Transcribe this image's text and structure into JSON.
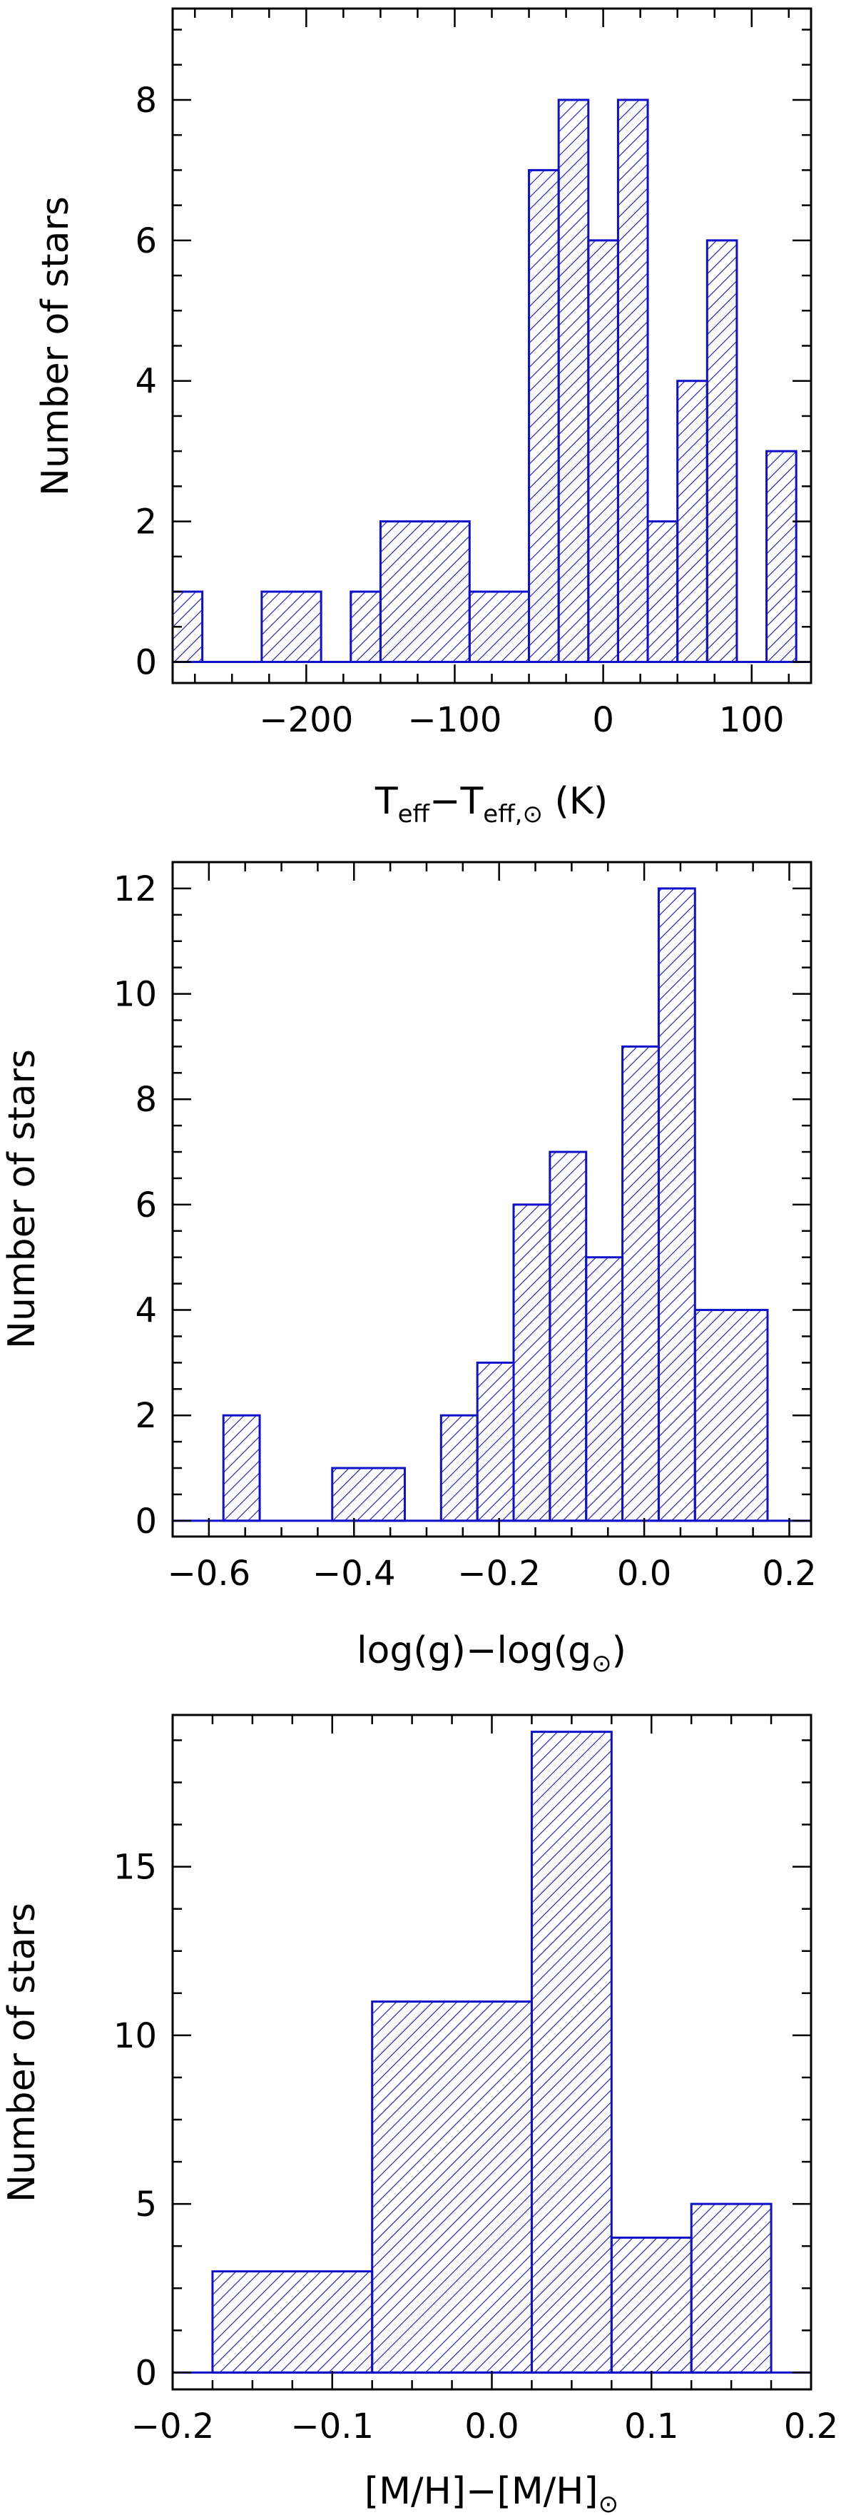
{
  "colors": {
    "bars": "#1010c8",
    "axes": "#000000",
    "background": "#ffffff"
  },
  "chart_data": [
    {
      "type": "bar",
      "title": "",
      "ylabel": "Number of stars",
      "xlabel": "T_eff − T_eff,⊙ (K)",
      "xlabel_parts": {
        "t1": "T",
        "s1": "eff",
        "minus": "−",
        "t2": "T",
        "s2": "eff,⊙",
        "unit": " (K)"
      },
      "xlim": [
        -290,
        140
      ],
      "ylim": [
        -0.3,
        9.3
      ],
      "xticks": [
        -200,
        -100,
        0,
        100
      ],
      "xtick_labels": [
        "−200",
        "−100",
        "0",
        "100"
      ],
      "yticks": [
        0,
        2,
        4,
        6,
        8
      ],
      "ytick_labels": [
        "0",
        "2",
        "4",
        "6",
        "8"
      ],
      "bin_width": 20,
      "bins": [
        {
          "x0": -290,
          "x1": -270,
          "count": 1
        },
        {
          "x0": -230,
          "x1": -190,
          "count": 1
        },
        {
          "x0": -170,
          "x1": -150,
          "count": 1
        },
        {
          "x0": -150,
          "x1": -90,
          "count": 2
        },
        {
          "x0": -90,
          "x1": -50,
          "count": 1
        },
        {
          "x0": -50,
          "x1": -30,
          "count": 7
        },
        {
          "x0": -30,
          "x1": -10,
          "count": 8
        },
        {
          "x0": -10,
          "x1": 10,
          "count": 6
        },
        {
          "x0": 10,
          "x1": 30,
          "count": 8
        },
        {
          "x0": 30,
          "x1": 50,
          "count": 2
        },
        {
          "x0": 50,
          "x1": 70,
          "count": 4
        },
        {
          "x0": 70,
          "x1": 90,
          "count": 6
        },
        {
          "x0": 110,
          "x1": 130,
          "count": 3
        }
      ]
    },
    {
      "type": "bar",
      "title": "",
      "ylabel": "Number of stars",
      "xlabel": "log(g) − log(g⊙)",
      "xlabel_parts": {
        "a": "log(g)",
        "minus": "−",
        "b": "log(g",
        "sub": "⊙",
        "c": ")"
      },
      "xlim": [
        -0.65,
        0.23
      ],
      "ylim": [
        -0.3,
        12.5
      ],
      "xticks": [
        -0.6,
        -0.4,
        -0.2,
        0.0,
        0.2
      ],
      "xtick_labels": [
        "−0.6",
        "−0.4",
        "−0.2",
        "0.0",
        "0.2"
      ],
      "yticks": [
        0,
        2,
        4,
        6,
        8,
        10,
        12
      ],
      "ytick_labels": [
        "0",
        "2",
        "4",
        "6",
        "8",
        "10",
        "12"
      ],
      "bin_width": 0.05,
      "bins": [
        {
          "x0": -0.58,
          "x1": -0.53,
          "count": 2
        },
        {
          "x0": -0.43,
          "x1": -0.33,
          "count": 1
        },
        {
          "x0": -0.28,
          "x1": -0.23,
          "count": 2
        },
        {
          "x0": -0.23,
          "x1": -0.18,
          "count": 3
        },
        {
          "x0": -0.18,
          "x1": -0.13,
          "count": 6
        },
        {
          "x0": -0.13,
          "x1": -0.08,
          "count": 7
        },
        {
          "x0": -0.08,
          "x1": -0.03,
          "count": 5
        },
        {
          "x0": -0.03,
          "x1": 0.02,
          "count": 9
        },
        {
          "x0": 0.02,
          "x1": 0.07,
          "count": 12
        },
        {
          "x0": 0.07,
          "x1": 0.17,
          "count": 4
        }
      ]
    },
    {
      "type": "bar",
      "title": "",
      "ylabel": "Number of stars",
      "xlabel": "[M/H] − [M/H]⊙",
      "xlabel_parts": {
        "a": "[M/H]",
        "minus": "−",
        "b": "[M/H]",
        "sub": "⊙"
      },
      "xlim": [
        -0.2,
        0.2
      ],
      "ylim": [
        -0.5,
        19.5
      ],
      "xticks": [
        -0.2,
        -0.1,
        0.0,
        0.1,
        0.2
      ],
      "xtick_labels": [
        "−0.2",
        "−0.1",
        "0.0",
        "0.1",
        "0.2"
      ],
      "yticks": [
        0,
        5,
        10,
        15
      ],
      "ytick_labels": [
        "0",
        "5",
        "10",
        "15"
      ],
      "bin_width": 0.05,
      "bins": [
        {
          "x0": -0.175,
          "x1": -0.075,
          "count": 3
        },
        {
          "x0": -0.075,
          "x1": 0.025,
          "count": 11
        },
        {
          "x0": 0.025,
          "x1": 0.075,
          "count": 19
        },
        {
          "x0": 0.075,
          "x1": 0.125,
          "count": 4
        },
        {
          "x0": 0.125,
          "x1": 0.175,
          "count": 5
        }
      ]
    }
  ]
}
